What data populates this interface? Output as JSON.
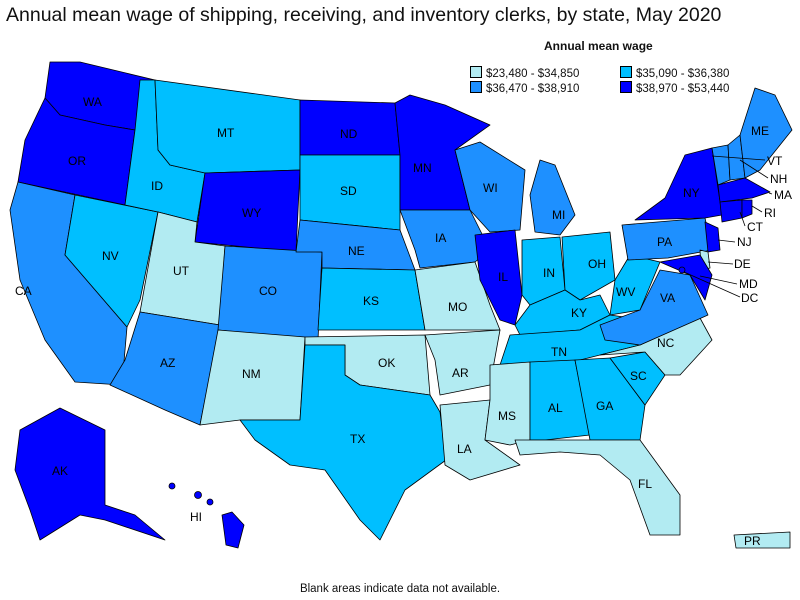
{
  "title": "Annual mean wage of shipping, receiving, and inventory clerks, by state, May 2020",
  "legend": {
    "title": "Annual mean wage",
    "items": [
      {
        "label": "$23,480 - $34,850",
        "color": "#b2ebf2"
      },
      {
        "label": "$35,090 - $36,380",
        "color": "#00bfff"
      },
      {
        "label": "$36,470 - $38,910",
        "color": "#1e90ff"
      },
      {
        "label": "$38,970 - $53,440",
        "color": "#0000ff"
      }
    ]
  },
  "footnote": "Blank areas indicate data not available.",
  "colors": {
    "c1": "#b2ebf2",
    "c2": "#00bfff",
    "c3": "#1e90ff",
    "c4": "#0000ff"
  },
  "states": [
    {
      "abbr": "WA",
      "wage_class": 4
    },
    {
      "abbr": "OR",
      "wage_class": 4
    },
    {
      "abbr": "CA",
      "wage_class": 3
    },
    {
      "abbr": "NV",
      "wage_class": 2
    },
    {
      "abbr": "ID",
      "wage_class": 2
    },
    {
      "abbr": "MT",
      "wage_class": 2
    },
    {
      "abbr": "WY",
      "wage_class": 4
    },
    {
      "abbr": "UT",
      "wage_class": 1
    },
    {
      "abbr": "AZ",
      "wage_class": 3
    },
    {
      "abbr": "CO",
      "wage_class": 3
    },
    {
      "abbr": "NM",
      "wage_class": 1
    },
    {
      "abbr": "ND",
      "wage_class": 4
    },
    {
      "abbr": "SD",
      "wage_class": 2
    },
    {
      "abbr": "NE",
      "wage_class": 3
    },
    {
      "abbr": "KS",
      "wage_class": 2
    },
    {
      "abbr": "OK",
      "wage_class": 1
    },
    {
      "abbr": "TX",
      "wage_class": 2
    },
    {
      "abbr": "MN",
      "wage_class": 4
    },
    {
      "abbr": "IA",
      "wage_class": 3
    },
    {
      "abbr": "MO",
      "wage_class": 1
    },
    {
      "abbr": "AR",
      "wage_class": 1
    },
    {
      "abbr": "LA",
      "wage_class": 1
    },
    {
      "abbr": "WI",
      "wage_class": 3
    },
    {
      "abbr": "IL",
      "wage_class": 4
    },
    {
      "abbr": "MI",
      "wage_class": 3
    },
    {
      "abbr": "IN",
      "wage_class": 2
    },
    {
      "abbr": "OH",
      "wage_class": 2
    },
    {
      "abbr": "KY",
      "wage_class": 2
    },
    {
      "abbr": "TN",
      "wage_class": 2
    },
    {
      "abbr": "MS",
      "wage_class": 1
    },
    {
      "abbr": "AL",
      "wage_class": 2
    },
    {
      "abbr": "GA",
      "wage_class": 2
    },
    {
      "abbr": "FL",
      "wage_class": 1
    },
    {
      "abbr": "SC",
      "wage_class": 2
    },
    {
      "abbr": "NC",
      "wage_class": 1
    },
    {
      "abbr": "VA",
      "wage_class": 3
    },
    {
      "abbr": "WV",
      "wage_class": 2
    },
    {
      "abbr": "PA",
      "wage_class": 3
    },
    {
      "abbr": "NY",
      "wage_class": 4
    },
    {
      "abbr": "NJ",
      "wage_class": 4
    },
    {
      "abbr": "DE",
      "wage_class": 1
    },
    {
      "abbr": "MD",
      "wage_class": 4
    },
    {
      "abbr": "DC",
      "wage_class": 4
    },
    {
      "abbr": "VT",
      "wage_class": 3
    },
    {
      "abbr": "NH",
      "wage_class": 3
    },
    {
      "abbr": "ME",
      "wage_class": 3
    },
    {
      "abbr": "MA",
      "wage_class": 4
    },
    {
      "abbr": "CT",
      "wage_class": 4
    },
    {
      "abbr": "RI",
      "wage_class": 4
    },
    {
      "abbr": "AK",
      "wage_class": 4
    },
    {
      "abbr": "HI",
      "wage_class": 4
    },
    {
      "abbr": "PR",
      "wage_class": 1
    }
  ]
}
